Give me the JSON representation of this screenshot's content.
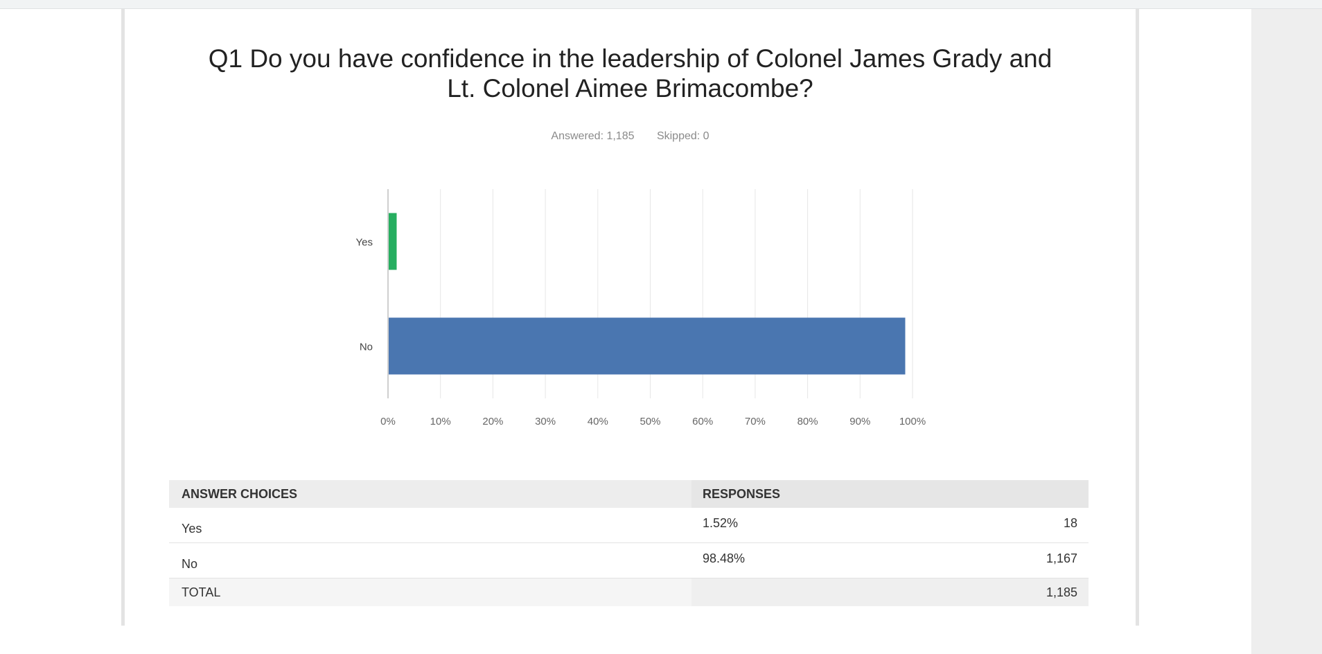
{
  "question": {
    "title_line1": "Q1 Do you have confidence in the leadership of Colonel James Grady and",
    "title_line2": "Lt. Colonel Aimee Brimacombe?",
    "answered": "Answered: 1,185",
    "skipped": "Skipped: 0"
  },
  "chart_data": {
    "type": "bar",
    "orientation": "horizontal",
    "categories": [
      "Yes",
      "No"
    ],
    "values": [
      1.52,
      98.48
    ],
    "colors": [
      "#27ae60",
      "#4a76b0"
    ],
    "xlim": [
      0,
      100
    ],
    "xticks": [
      "0%",
      "10%",
      "20%",
      "30%",
      "40%",
      "50%",
      "60%",
      "70%",
      "80%",
      "90%",
      "100%"
    ],
    "grid": true
  },
  "table": {
    "headers": [
      "ANSWER CHOICES",
      "RESPONSES"
    ],
    "rows": [
      {
        "choice": "Yes",
        "percent": "1.52%",
        "count": "18"
      },
      {
        "choice": "No",
        "percent": "98.48%",
        "count": "1,167"
      }
    ],
    "total_label": "TOTAL",
    "total_count": "1,185"
  }
}
